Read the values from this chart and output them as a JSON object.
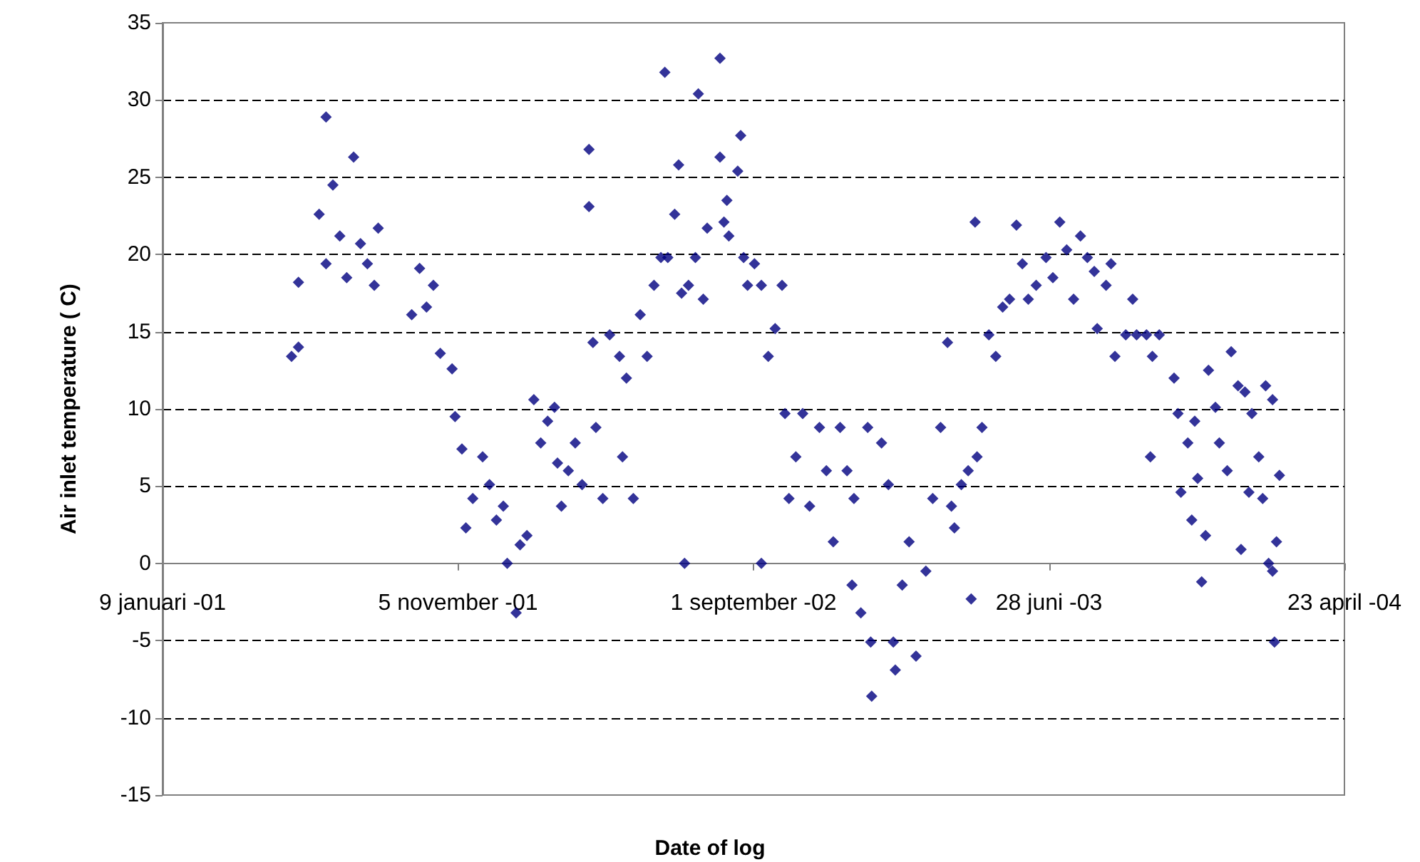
{
  "chart_data": {
    "type": "scatter",
    "xlabel": "Date of log",
    "ylabel": "Air inlet temperature ( C)",
    "xlim": [
      "2001-01-09",
      "2004-04-23"
    ],
    "xticks": [
      {
        "value": "2001-01-09",
        "label": "9 januari -01"
      },
      {
        "value": "2001-11-05",
        "label": "5 november -01"
      },
      {
        "value": "2002-09-01",
        "label": "1 september -02"
      },
      {
        "value": "2003-06-28",
        "label": "28 juni -03"
      },
      {
        "value": "2004-04-23",
        "label": "23 april -04"
      }
    ],
    "ylim": [
      -15,
      35
    ],
    "yticks": [
      -15,
      -10,
      -5,
      0,
      5,
      10,
      15,
      20,
      25,
      30,
      35
    ],
    "grid": "y",
    "marker": "diamond",
    "series": [
      {
        "color": "#000080",
        "x": [
          "2001-05-20",
          "2001-05-27",
          "2001-05-27",
          "2001-06-17",
          "2001-06-24",
          "2001-07-01",
          "2001-06-24",
          "2001-07-08",
          "2001-07-15",
          "2001-07-22",
          "2001-07-29",
          "2001-08-05",
          "2001-08-12",
          "2001-08-16",
          "2001-09-27",
          "2001-09-19",
          "2001-10-04",
          "2001-10-11",
          "2001-10-18",
          "2001-10-30",
          "2001-11-02",
          "2001-11-09",
          "2001-11-13",
          "2001-11-20",
          "2001-11-30",
          "2001-12-07",
          "2001-12-14",
          "2001-12-21",
          "2001-12-25",
          "2002-01-03",
          "2002-01-07",
          "2002-01-14",
          "2002-01-21",
          "2002-01-28",
          "2002-02-04",
          "2002-02-11",
          "2002-02-14",
          "2002-02-18",
          "2002-02-25",
          "2002-03-04",
          "2002-03-11",
          "2002-03-18",
          "2002-03-18",
          "2002-03-22",
          "2002-03-25",
          "2002-04-01",
          "2002-04-08",
          "2002-04-18",
          "2002-04-21",
          "2002-04-25",
          "2002-05-02",
          "2002-05-09",
          "2002-05-16",
          "2002-05-23",
          "2002-05-30",
          "2002-06-03",
          "2002-06-06",
          "2002-06-13",
          "2002-06-17",
          "2002-06-23",
          "2002-06-20",
          "2002-06-27",
          "2002-07-04",
          "2002-07-07",
          "2002-07-12",
          "2002-07-16",
          "2002-07-29",
          "2002-07-29",
          "2002-08-02",
          "2002-08-05",
          "2002-08-07",
          "2002-08-16",
          "2002-08-19",
          "2002-08-22",
          "2002-08-26",
          "2002-09-02",
          "2002-09-09",
          "2002-09-09",
          "2002-09-16",
          "2002-09-23",
          "2002-09-30",
          "2002-10-03",
          "2002-10-07",
          "2002-10-14",
          "2002-10-21",
          "2002-10-28",
          "2002-11-07",
          "2002-11-14",
          "2002-11-21",
          "2002-11-28",
          "2002-12-05",
          "2002-12-10",
          "2002-12-12",
          "2002-12-19",
          "2002-12-26",
          "2002-12-29",
          "2002-12-30",
          "2003-01-09",
          "2003-01-16",
          "2003-01-21",
          "2003-01-23",
          "2003-01-30",
          "2003-02-06",
          "2003-02-13",
          "2003-02-23",
          "2003-03-02",
          "2003-03-10",
          "2003-03-17",
          "2003-03-21",
          "2003-03-24",
          "2003-03-31",
          "2003-04-07",
          "2003-04-10",
          "2003-04-14",
          "2003-04-16",
          "2003-04-21",
          "2003-04-28",
          "2003-05-05",
          "2003-05-12",
          "2003-05-19",
          "2003-05-26",
          "2003-06-01",
          "2003-06-07",
          "2003-06-15",
          "2003-06-25",
          "2003-07-02",
          "2003-07-09",
          "2003-07-16",
          "2003-07-23",
          "2003-07-30",
          "2003-08-06",
          "2003-08-13",
          "2003-08-16",
          "2003-08-25",
          "2003-08-30",
          "2003-09-03",
          "2003-09-14",
          "2003-09-21",
          "2003-09-25",
          "2003-10-05",
          "2003-10-09",
          "2003-10-11",
          "2003-10-18",
          "2003-11-02",
          "2003-11-06",
          "2003-11-09",
          "2003-11-16",
          "2003-11-20",
          "2003-11-23",
          "2003-11-26",
          "2003-11-30",
          "2003-12-04",
          "2003-12-07",
          "2003-12-14",
          "2003-12-18",
          "2003-12-26",
          "2003-12-30",
          "2004-01-06",
          "2004-01-09",
          "2004-01-13",
          "2004-01-17",
          "2004-01-20",
          "2004-01-27",
          "2004-01-31",
          "2004-02-03",
          "2004-02-06",
          "2004-02-10",
          "2004-02-10",
          "2004-02-12",
          "2004-02-14",
          "2004-02-17"
        ],
        "values": [
          13.4,
          14.0,
          18.2,
          22.6,
          28.9,
          24.5,
          19.4,
          21.2,
          18.5,
          26.3,
          20.7,
          19.4,
          18.0,
          21.7,
          19.1,
          16.1,
          16.6,
          18.0,
          13.6,
          12.6,
          9.5,
          7.4,
          2.3,
          4.2,
          6.9,
          5.1,
          2.8,
          3.7,
          0,
          -3.2,
          1.2,
          1.8,
          10.6,
          7.8,
          9.2,
          10.1,
          6.5,
          3.7,
          6.0,
          7.8,
          5.1,
          26.8,
          23.1,
          14.3,
          8.8,
          4.2,
          14.8,
          13.4,
          6.9,
          12.0,
          4.2,
          16.1,
          13.4,
          18.0,
          19.8,
          31.8,
          19.8,
          22.6,
          25.8,
          0,
          17.5,
          18.0,
          19.8,
          30.4,
          17.1,
          21.7,
          32.7,
          26.3,
          22.1,
          23.5,
          21.2,
          25.4,
          27.7,
          19.8,
          18.0,
          19.4,
          18.0,
          0,
          13.4,
          15.2,
          18.0,
          9.7,
          4.2,
          6.9,
          9.7,
          3.7,
          8.8,
          6.0,
          1.4,
          8.8,
          6.0,
          -1.4,
          4.2,
          -3.2,
          8.8,
          -5.1,
          -8.6,
          7.8,
          5.1,
          -5.1,
          -6.9,
          -1.4,
          1.4,
          -6.0,
          -0.5,
          4.2,
          8.8,
          14.3,
          3.7,
          2.3,
          5.1,
          6.0,
          -2.3,
          22.1,
          6.9,
          8.8,
          14.8,
          13.4,
          16.6,
          17.1,
          21.9,
          19.4,
          17.1,
          18.0,
          19.8,
          18.5,
          22.1,
          20.3,
          17.1,
          21.2,
          19.8,
          18.9,
          15.2,
          18.0,
          19.4,
          13.4,
          14.8,
          17.1,
          14.8,
          14.8,
          6.9,
          13.4,
          14.8,
          12.0,
          9.7,
          4.6,
          7.8,
          2.8,
          9.2,
          5.5,
          -1.2,
          1.8,
          12.5,
          10.1,
          7.8,
          6.0,
          13.7,
          11.5,
          0.9,
          11.1,
          4.6,
          9.7,
          6.9,
          4.2,
          11.5,
          0,
          10.6,
          -0.5,
          -5.1,
          1.4,
          5.7
        ]
      }
    ]
  }
}
